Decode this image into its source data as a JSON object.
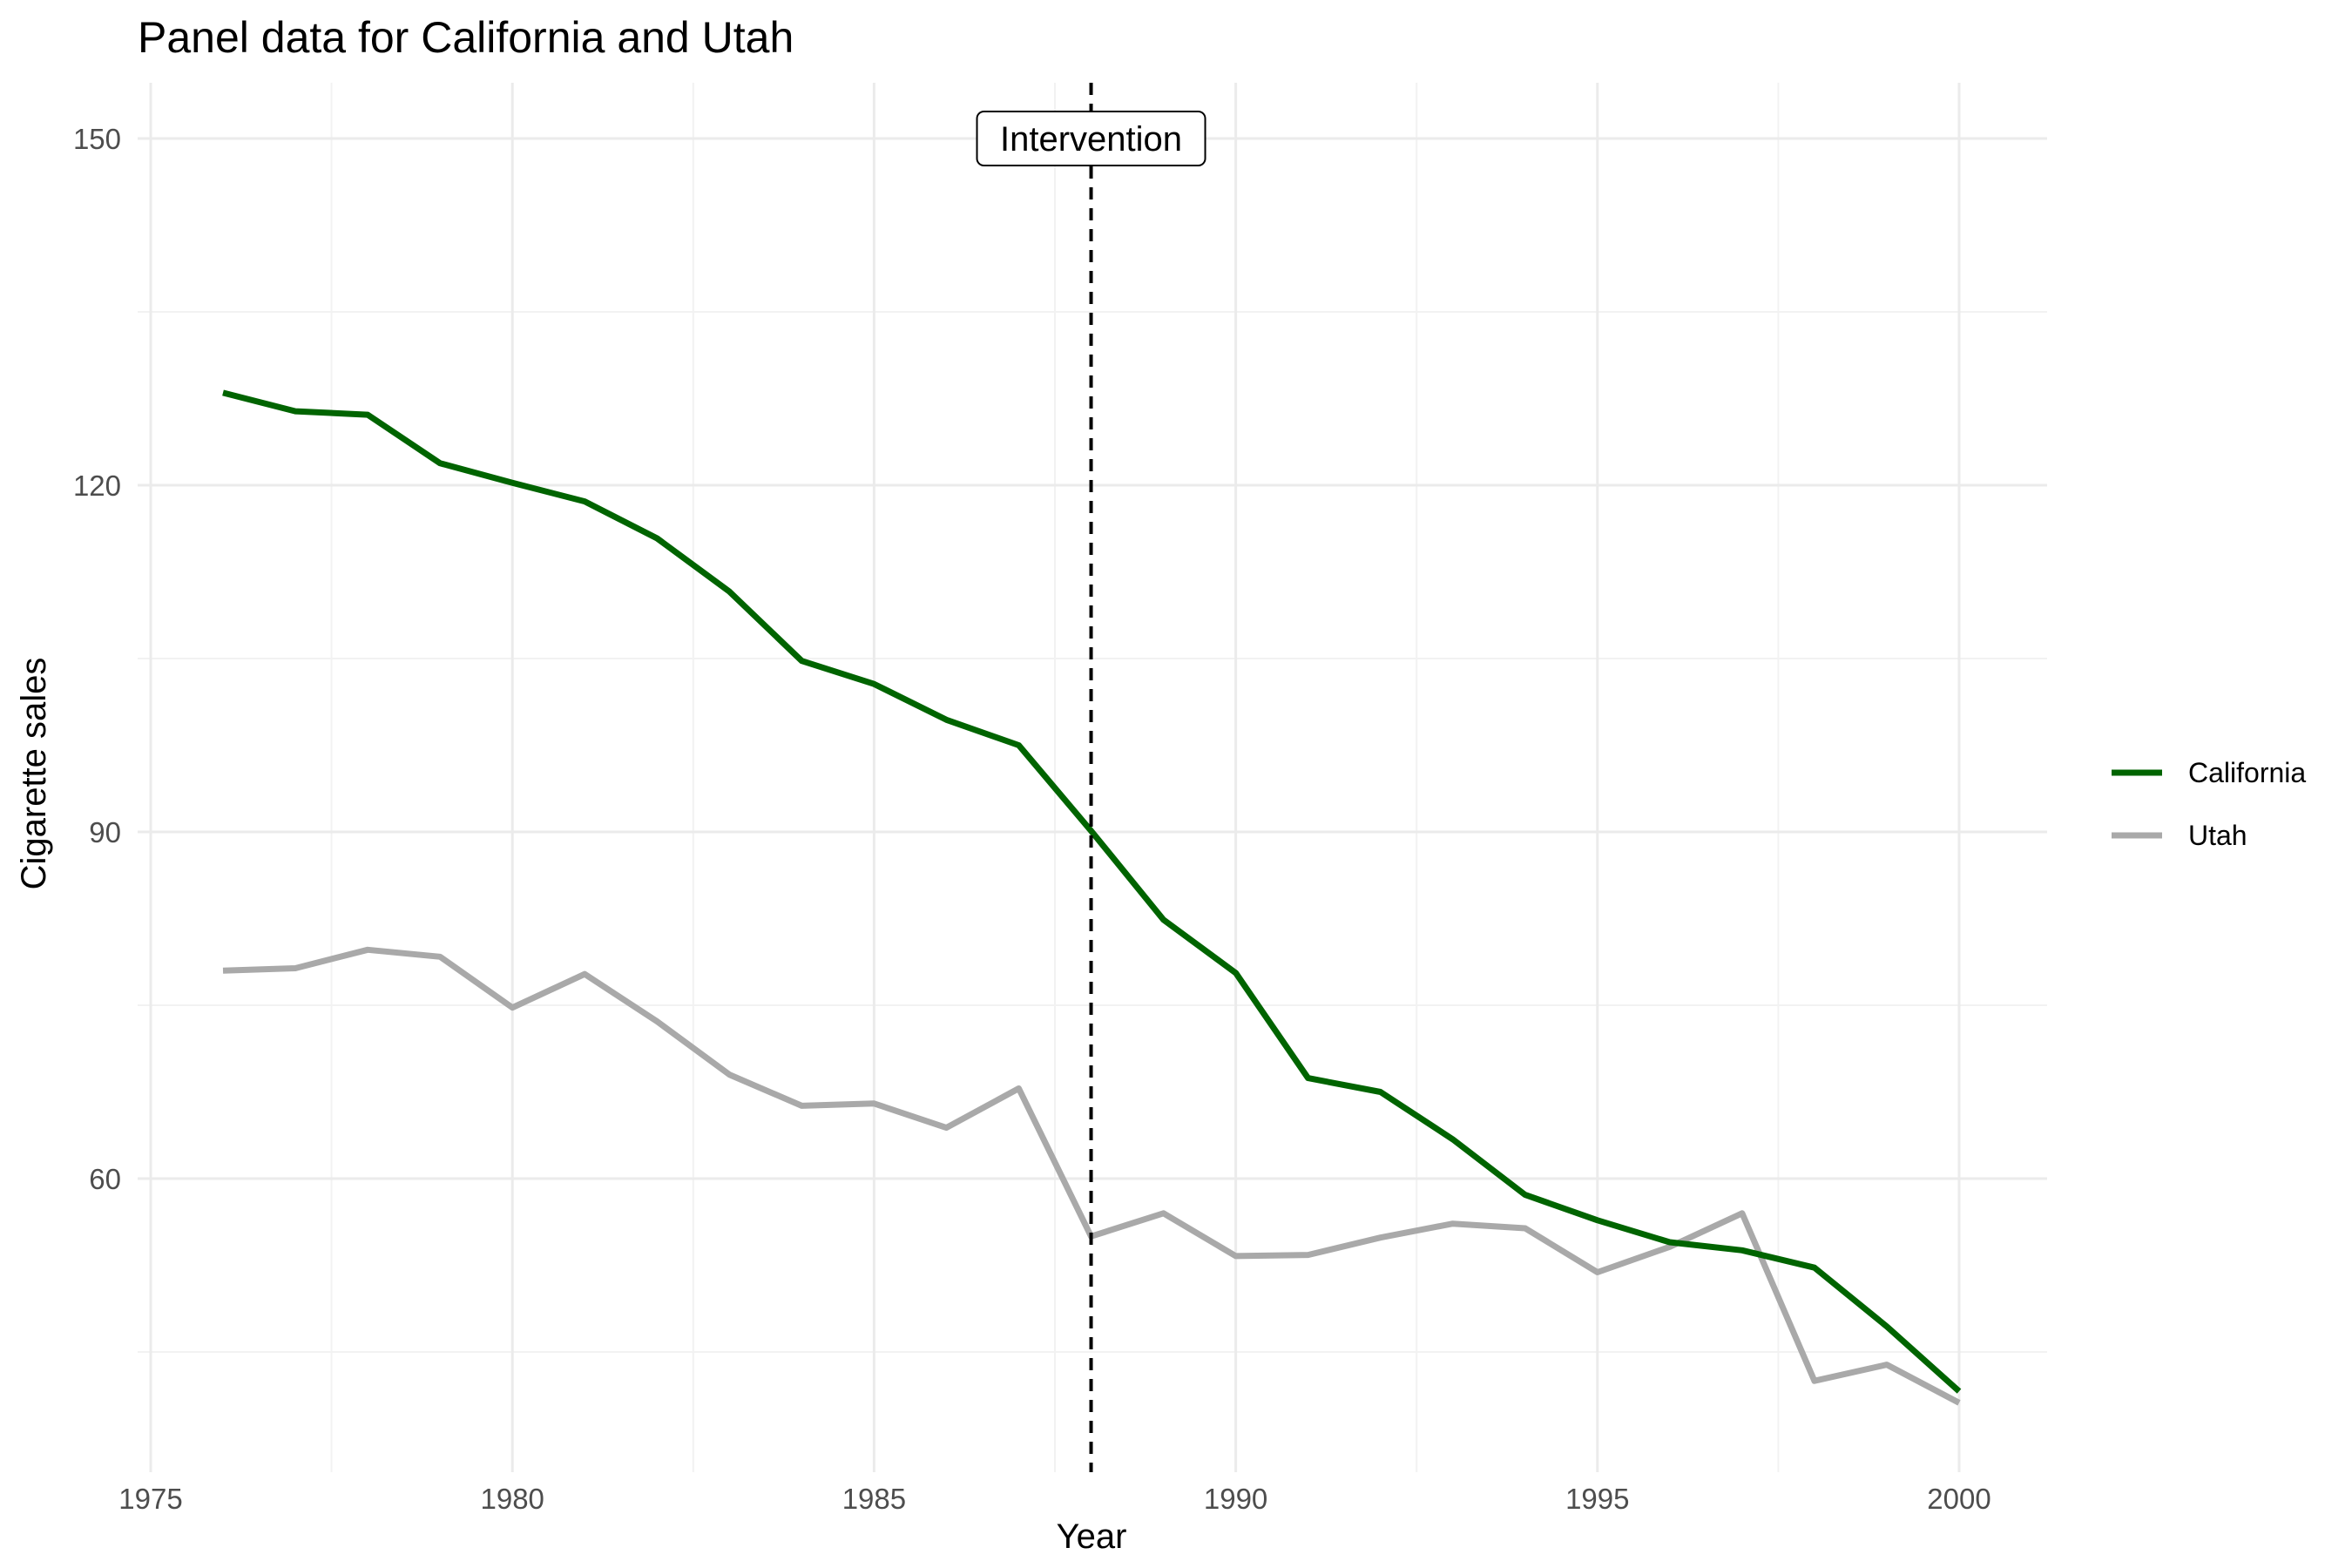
{
  "chart_data": {
    "type": "line",
    "title": "Panel data for California and Utah",
    "xlabel": "Year",
    "ylabel": "Cigarette sales",
    "xlim": [
      1975,
      2000
    ],
    "ylim": [
      40,
      155
    ],
    "x_ticks": [
      1975,
      1980,
      1985,
      1990,
      1995,
      2000
    ],
    "y_ticks": [
      60,
      90,
      120,
      150
    ],
    "grid": true,
    "legend_position": "right",
    "x": [
      1976,
      1977,
      1978,
      1979,
      1980,
      1981,
      1982,
      1983,
      1984,
      1985,
      1986,
      1987,
      1988,
      1989,
      1990,
      1991,
      1992,
      1993,
      1994,
      1995,
      1996,
      1997,
      1998,
      1999,
      2000
    ],
    "series": [
      {
        "name": "California",
        "color": "#006400",
        "values": [
          128.0,
          126.4,
          126.1,
          121.9,
          120.2,
          118.6,
          115.4,
          110.8,
          104.8,
          102.8,
          99.7,
          97.5,
          90.1,
          82.4,
          77.8,
          68.7,
          67.5,
          63.4,
          58.6,
          56.4,
          54.5,
          53.8,
          52.3,
          47.2,
          41.6
        ]
      },
      {
        "name": "Utah",
        "color": "#A9A9A9",
        "values": [
          78.0,
          78.2,
          79.8,
          79.2,
          74.8,
          77.7,
          73.6,
          69.0,
          66.3,
          66.5,
          64.4,
          67.8,
          55.0,
          57.0,
          53.3,
          53.4,
          54.9,
          56.1,
          55.7,
          51.9,
          54.1,
          57.0,
          42.5,
          43.9,
          40.6
        ]
      }
    ],
    "annotations": [
      {
        "type": "vline",
        "x": 1988,
        "style": "dashed",
        "color": "#000000",
        "label": "Intervention",
        "label_y": 150
      }
    ]
  }
}
